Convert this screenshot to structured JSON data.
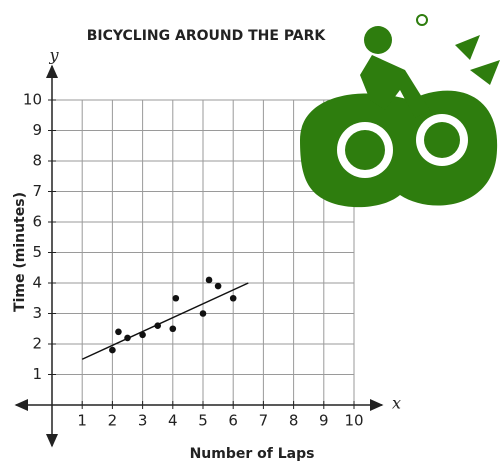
{
  "chart_data": {
    "type": "scatter",
    "title": "BICYCLING AROUND THE PARK",
    "x_label": "Number of Laps",
    "y_label": "Time (minutes)",
    "x_axis_name": "x",
    "y_axis_name": "y",
    "x": [
      2,
      2.2,
      2.5,
      3,
      3.5,
      4,
      4.1,
      5,
      5.2,
      5.5,
      6
    ],
    "values": [
      1.8,
      2.4,
      2.2,
      2.3,
      2.6,
      2.5,
      3.5,
      3,
      4.1,
      3.9,
      3.5
    ],
    "color": "#111111",
    "trendline": {
      "x": [
        1,
        6.5
      ],
      "y": [
        1.5,
        4
      ]
    },
    "xlim": [
      0,
      10
    ],
    "ylim": [
      0,
      10
    ],
    "xticks": [
      1,
      2,
      3,
      4,
      5,
      6,
      7,
      8,
      9,
      10
    ],
    "yticks": [
      1,
      2,
      3,
      4,
      5,
      6,
      7,
      8,
      9,
      10
    ],
    "grid": true
  }
}
